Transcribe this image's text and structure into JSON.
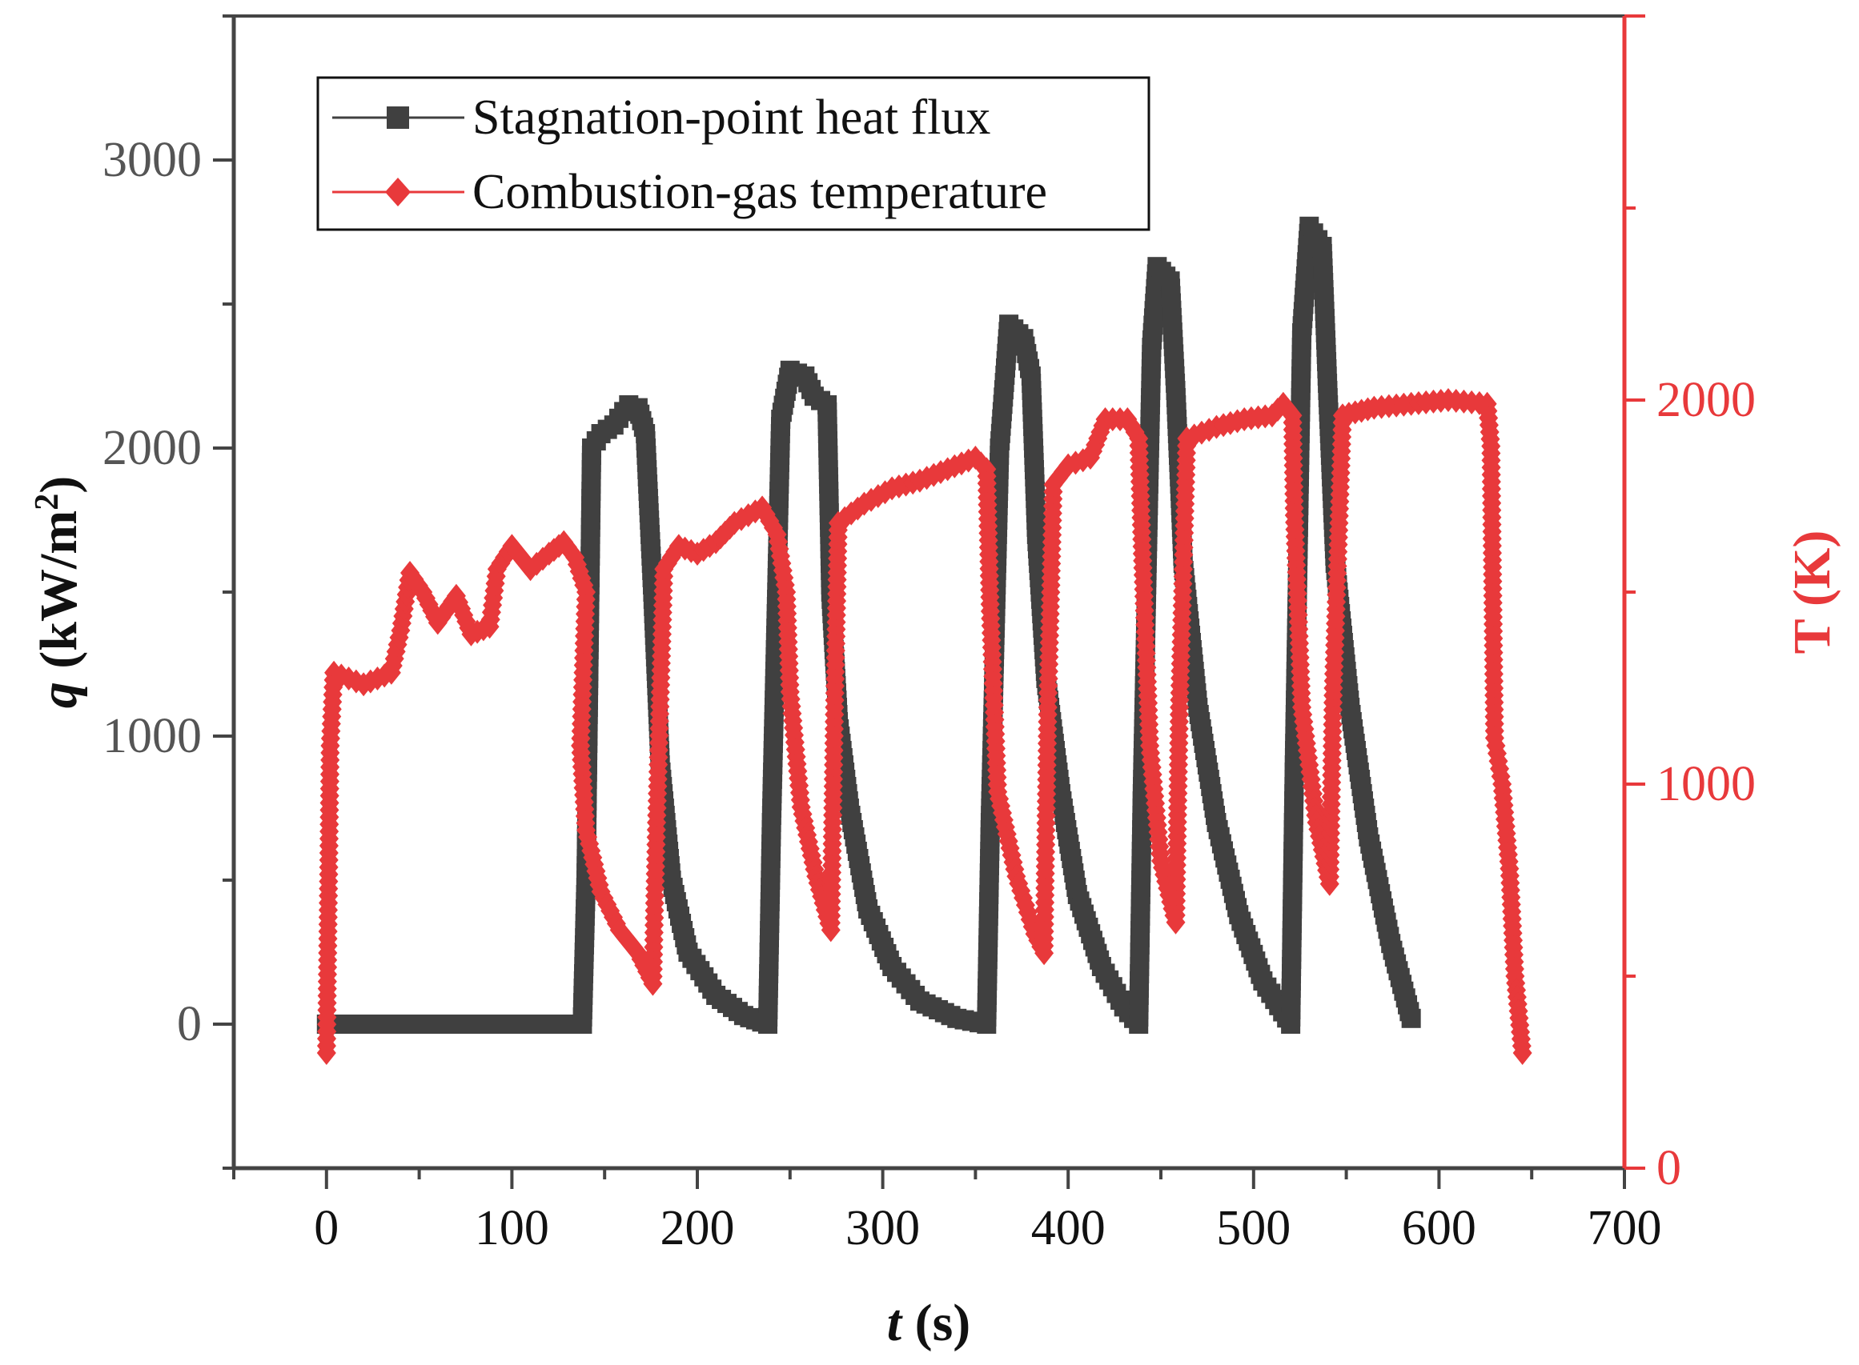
{
  "chart_data": {
    "type": "line",
    "title": "",
    "xlabel": "t (s)",
    "xlabel_var": "t",
    "xlabel_unit": "(s)",
    "ylabel_left": "q (kW/m2)",
    "ylabel_left_var": "q",
    "ylabel_left_unit_pre": "(kW/m",
    "ylabel_left_unit_sup": "2",
    "ylabel_left_unit_post": ")",
    "ylabel_right": "T (K)",
    "xlim": [
      -50,
      700
    ],
    "ylim_left": [
      -500,
      3500
    ],
    "ylim_right": [
      0,
      3000
    ],
    "xticks": [
      "0",
      "100",
      "200",
      "300",
      "400",
      "500",
      "600",
      "700"
    ],
    "yticks_left": [
      "0",
      "1000",
      "2000",
      "3000"
    ],
    "yticks_right": [
      "0",
      "1000",
      "2000"
    ],
    "legend_position": "top-left",
    "colors": {
      "q": "#404040",
      "T": "#e8393b",
      "axis": "#444444"
    },
    "series": [
      {
        "name": "Stagnation-point heat flux",
        "axis": "left",
        "marker": "square",
        "color": "#404040",
        "points": [
          [
            0,
            0
          ],
          [
            138,
            0
          ],
          [
            140,
            500
          ],
          [
            143,
            2000
          ],
          [
            148,
            2050
          ],
          [
            155,
            2080
          ],
          [
            163,
            2150
          ],
          [
            168,
            2140
          ],
          [
            172,
            2050
          ],
          [
            176,
            1500
          ],
          [
            180,
            900
          ],
          [
            186,
            500
          ],
          [
            195,
            250
          ],
          [
            210,
            100
          ],
          [
            225,
            30
          ],
          [
            238,
            0
          ],
          [
            240,
            700
          ],
          [
            245,
            2100
          ],
          [
            250,
            2270
          ],
          [
            258,
            2250
          ],
          [
            263,
            2180
          ],
          [
            270,
            2150
          ],
          [
            272,
            1500
          ],
          [
            276,
            1050
          ],
          [
            282,
            750
          ],
          [
            292,
            400
          ],
          [
            305,
            200
          ],
          [
            320,
            80
          ],
          [
            340,
            20
          ],
          [
            356,
            0
          ],
          [
            358,
            700
          ],
          [
            363,
            2000
          ],
          [
            368,
            2430
          ],
          [
            376,
            2380
          ],
          [
            380,
            2250
          ],
          [
            383,
            1700
          ],
          [
            388,
            1200
          ],
          [
            396,
            800
          ],
          [
            405,
            450
          ],
          [
            418,
            200
          ],
          [
            430,
            60
          ],
          [
            438,
            0
          ],
          [
            440,
            800
          ],
          [
            445,
            2350
          ],
          [
            448,
            2630
          ],
          [
            455,
            2580
          ],
          [
            458,
            2200
          ],
          [
            462,
            1600
          ],
          [
            470,
            1100
          ],
          [
            480,
            700
          ],
          [
            492,
            380
          ],
          [
            505,
            150
          ],
          [
            520,
            0
          ],
          [
            522,
            900
          ],
          [
            526,
            2400
          ],
          [
            530,
            2770
          ],
          [
            537,
            2700
          ],
          [
            540,
            2200
          ],
          [
            544,
            1600
          ],
          [
            552,
            1100
          ],
          [
            562,
            650
          ],
          [
            574,
            280
          ],
          [
            585,
            20
          ]
        ]
      },
      {
        "name": "Combustion-gas temperature",
        "axis": "right",
        "marker": "diamond",
        "color": "#e8393b",
        "points": [
          [
            0,
            300
          ],
          [
            2,
            1100
          ],
          [
            4,
            1290
          ],
          [
            20,
            1260
          ],
          [
            35,
            1290
          ],
          [
            40,
            1400
          ],
          [
            45,
            1550
          ],
          [
            52,
            1500
          ],
          [
            60,
            1420
          ],
          [
            70,
            1490
          ],
          [
            78,
            1390
          ],
          [
            88,
            1410
          ],
          [
            92,
            1560
          ],
          [
            100,
            1620
          ],
          [
            110,
            1560
          ],
          [
            120,
            1600
          ],
          [
            128,
            1630
          ],
          [
            134,
            1590
          ],
          [
            140,
            1500
          ],
          [
            137,
            1100
          ],
          [
            140,
            880
          ],
          [
            148,
            720
          ],
          [
            158,
            620
          ],
          [
            168,
            560
          ],
          [
            176,
            480
          ],
          [
            178,
            900
          ],
          [
            182,
            1560
          ],
          [
            190,
            1620
          ],
          [
            200,
            1600
          ],
          [
            210,
            1630
          ],
          [
            220,
            1680
          ],
          [
            235,
            1720
          ],
          [
            243,
            1650
          ],
          [
            248,
            1500
          ],
          [
            250,
            1240
          ],
          [
            256,
            940
          ],
          [
            264,
            760
          ],
          [
            272,
            620
          ],
          [
            274,
            1200
          ],
          [
            276,
            1680
          ],
          [
            290,
            1730
          ],
          [
            305,
            1770
          ],
          [
            320,
            1790
          ],
          [
            335,
            1820
          ],
          [
            350,
            1850
          ],
          [
            356,
            1820
          ],
          [
            358,
            1450
          ],
          [
            362,
            980
          ],
          [
            372,
            760
          ],
          [
            382,
            610
          ],
          [
            387,
            560
          ],
          [
            389,
            1200
          ],
          [
            392,
            1780
          ],
          [
            400,
            1830
          ],
          [
            412,
            1850
          ],
          [
            420,
            1950
          ],
          [
            432,
            1950
          ],
          [
            438,
            1900
          ],
          [
            440,
            1600
          ],
          [
            444,
            1100
          ],
          [
            450,
            800
          ],
          [
            458,
            640
          ],
          [
            460,
            1200
          ],
          [
            464,
            1900
          ],
          [
            480,
            1930
          ],
          [
            495,
            1950
          ],
          [
            510,
            1960
          ],
          [
            516,
            1990
          ],
          [
            521,
            1960
          ],
          [
            522,
            1700
          ],
          [
            526,
            1200
          ],
          [
            534,
            900
          ],
          [
            541,
            740
          ],
          [
            543,
            1250
          ],
          [
            548,
            1960
          ],
          [
            565,
            1980
          ],
          [
            585,
            1990
          ],
          [
            605,
            2000
          ],
          [
            626,
            1990
          ],
          [
            628,
            1880
          ],
          [
            630,
            1120
          ],
          [
            634,
            1000
          ],
          [
            638,
            780
          ],
          [
            641,
            500
          ],
          [
            645,
            300
          ]
        ]
      }
    ]
  }
}
